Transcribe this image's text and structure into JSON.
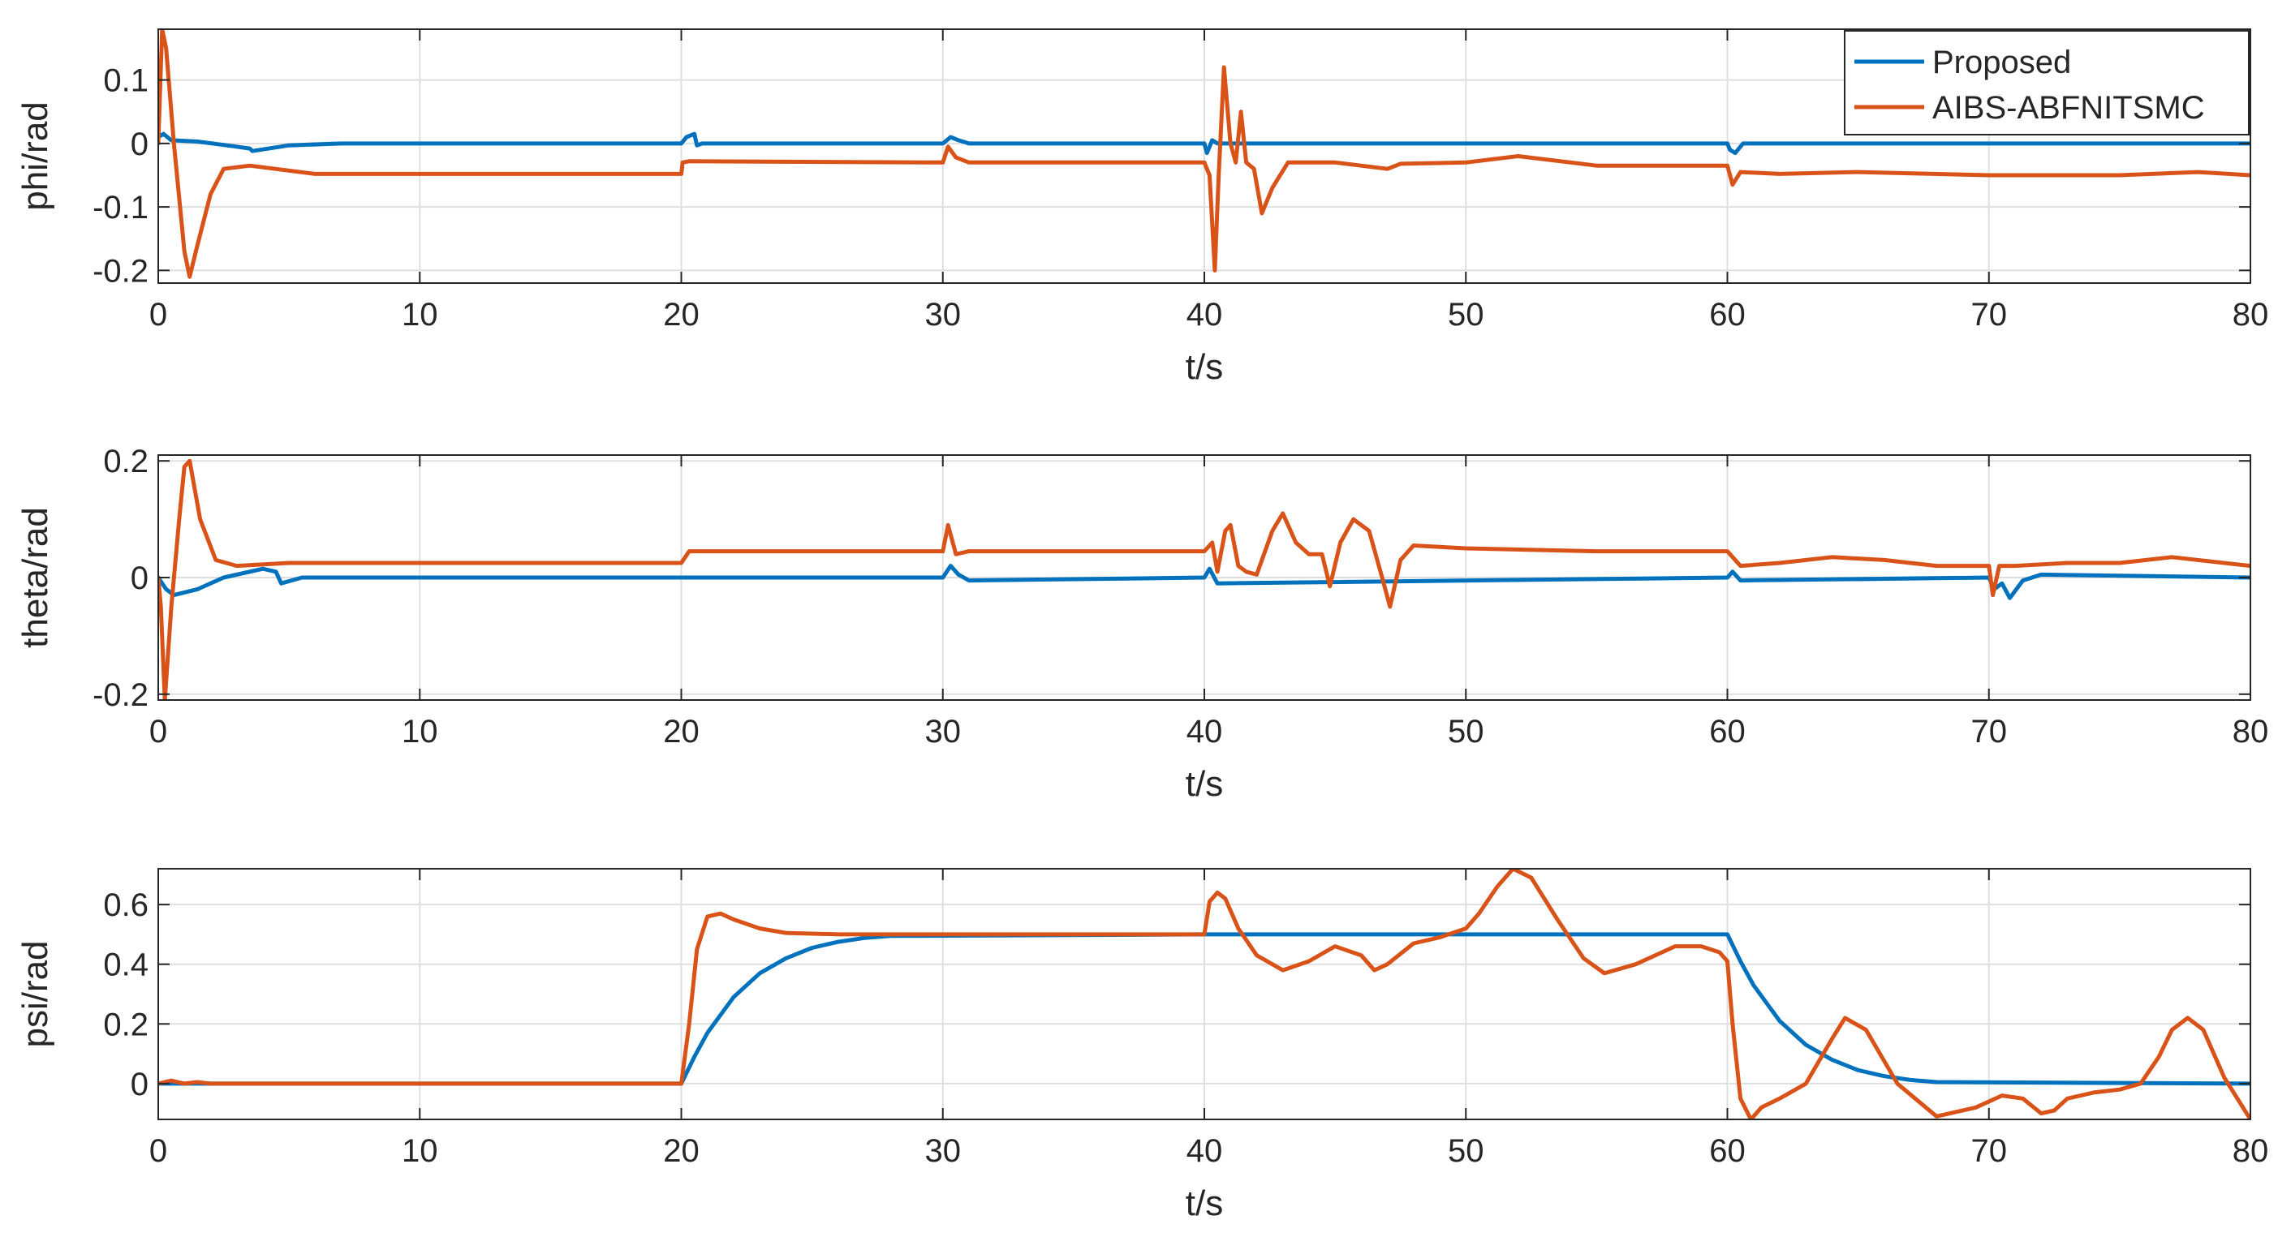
{
  "colors": {
    "proposed": "#0072BD",
    "aibs": "#D95319",
    "axes": "#262626",
    "grid": "#DFDFDF"
  },
  "legend": {
    "entries": [
      "Proposed",
      "AIBS-ABFNITSMC"
    ],
    "placement": "top-right"
  },
  "chart_data": [
    {
      "type": "line",
      "xlabel": "t/s",
      "ylabel": "phi/rad",
      "xlim": [
        0,
        80
      ],
      "ylim": [
        -0.22,
        0.18
      ],
      "xticks": [
        0,
        10,
        20,
        30,
        40,
        50,
        60,
        70,
        80
      ],
      "xtick_labels": [
        "0",
        "10",
        "20",
        "30",
        "40",
        "50",
        "60",
        "70",
        "80"
      ],
      "yticks": [
        -0.2,
        -0.1,
        0,
        0.1
      ],
      "ytick_labels": [
        "-0.2",
        "-0.1",
        "0",
        "0.1"
      ],
      "grid": true,
      "series": [
        {
          "name": "Proposed",
          "color_key": "proposed",
          "x": [
            0,
            0.2,
            0.5,
            1.5,
            3.0,
            3.5,
            3.6,
            5,
            7,
            20,
            20.2,
            20.5,
            20.6,
            20.8,
            30,
            30.3,
            30.6,
            31,
            40,
            40.1,
            40.3,
            40.5,
            60,
            60.1,
            60.3,
            60.6,
            80
          ],
          "y": [
            0.01,
            0.015,
            0.005,
            0.003,
            -0.005,
            -0.008,
            -0.012,
            -0.003,
            0,
            0,
            0.01,
            0.015,
            -0.003,
            0,
            0,
            0.01,
            0.005,
            0,
            0,
            -0.015,
            0.005,
            0,
            0,
            -0.01,
            -0.015,
            0,
            0
          ]
        },
        {
          "name": "AIBS-ABFNITSMC",
          "color_key": "aibs",
          "x": [
            0,
            0.15,
            0.3,
            0.6,
            1.0,
            1.2,
            1.5,
            2.0,
            2.5,
            3.5,
            6,
            20,
            20.05,
            20.3,
            30,
            30.2,
            30.5,
            31,
            40,
            40.2,
            40.4,
            40.55,
            40.75,
            41.0,
            41.2,
            41.4,
            41.6,
            41.9,
            42.2,
            42.6,
            43.2,
            45,
            47,
            47.5,
            50,
            52,
            55,
            60,
            60.2,
            60.5,
            62,
            65,
            70,
            75,
            78,
            80
          ],
          "y": [
            0.0,
            0.18,
            0.15,
            0.0,
            -0.17,
            -0.21,
            -0.16,
            -0.08,
            -0.04,
            -0.035,
            -0.048,
            -0.048,
            -0.03,
            -0.028,
            -0.03,
            -0.005,
            -0.022,
            -0.03,
            -0.03,
            -0.05,
            -0.2,
            -0.05,
            0.12,
            0.0,
            -0.03,
            0.05,
            -0.03,
            -0.04,
            -0.11,
            -0.07,
            -0.03,
            -0.03,
            -0.04,
            -0.032,
            -0.03,
            -0.02,
            -0.035,
            -0.035,
            -0.065,
            -0.045,
            -0.048,
            -0.045,
            -0.05,
            -0.05,
            -0.045,
            -0.05
          ]
        }
      ]
    },
    {
      "type": "line",
      "xlabel": "t/s",
      "ylabel": "theta/rad",
      "xlim": [
        0,
        80
      ],
      "ylim": [
        -0.21,
        0.21
      ],
      "xticks": [
        0,
        10,
        20,
        30,
        40,
        50,
        60,
        70,
        80
      ],
      "xtick_labels": [
        "0",
        "10",
        "20",
        "30",
        "40",
        "50",
        "60",
        "70",
        "80"
      ],
      "yticks": [
        -0.2,
        0,
        0.2
      ],
      "ytick_labels": [
        "-0.2",
        "0",
        "0.2"
      ],
      "grid": true,
      "series": [
        {
          "name": "Proposed",
          "color_key": "proposed",
          "x": [
            0,
            0.3,
            0.6,
            1.5,
            2.5,
            4.0,
            4.5,
            4.7,
            5.5,
            20,
            30,
            30.3,
            30.6,
            31,
            40,
            40.2,
            40.5,
            60,
            60.2,
            60.5,
            70,
            70.2,
            70.5,
            70.8,
            71.3,
            72,
            80
          ],
          "y": [
            0,
            -0.02,
            -0.03,
            -0.02,
            0.0,
            0.015,
            0.01,
            -0.01,
            0,
            0,
            0,
            0.02,
            0.005,
            -0.005,
            0,
            0.015,
            -0.01,
            0,
            0.01,
            -0.005,
            0,
            -0.02,
            -0.01,
            -0.035,
            -0.005,
            0.005,
            0
          ]
        },
        {
          "name": "AIBS-ABFNITSMC",
          "color_key": "aibs",
          "x": [
            0,
            0.1,
            0.25,
            0.5,
            0.8,
            1.0,
            1.2,
            1.6,
            2.2,
            3,
            5,
            20,
            20.3,
            30,
            30.2,
            30.5,
            31,
            40,
            40.3,
            40.5,
            40.8,
            41.0,
            41.3,
            41.6,
            42.0,
            42.6,
            43.0,
            43.5,
            44.0,
            44.5,
            44.8,
            45.2,
            45.7,
            46.3,
            46.8,
            47.1,
            47.5,
            48,
            50,
            55,
            60,
            60.5,
            62,
            64,
            66,
            68,
            70,
            70.15,
            70.4,
            71,
            73,
            75,
            77,
            80
          ],
          "y": [
            0,
            -0.05,
            -0.21,
            -0.05,
            0.1,
            0.19,
            0.2,
            0.1,
            0.03,
            0.02,
            0.025,
            0.025,
            0.045,
            0.045,
            0.09,
            0.04,
            0.045,
            0.045,
            0.06,
            0.01,
            0.08,
            0.09,
            0.02,
            0.01,
            0.005,
            0.08,
            0.11,
            0.06,
            0.04,
            0.04,
            -0.015,
            0.06,
            0.1,
            0.08,
            0.0,
            -0.05,
            0.03,
            0.055,
            0.05,
            0.045,
            0.045,
            0.02,
            0.025,
            0.035,
            0.03,
            0.02,
            0.02,
            -0.03,
            0.02,
            0.02,
            0.025,
            0.025,
            0.035,
            0.02
          ]
        }
      ]
    },
    {
      "type": "line",
      "xlabel": "t/s",
      "ylabel": "psi/rad",
      "xlim": [
        0,
        80
      ],
      "ylim": [
        -0.12,
        0.72
      ],
      "xticks": [
        0,
        10,
        20,
        30,
        40,
        50,
        60,
        70,
        80
      ],
      "xtick_labels": [
        "0",
        "10",
        "20",
        "30",
        "40",
        "50",
        "60",
        "70",
        "80"
      ],
      "yticks": [
        0,
        0.2,
        0.4,
        0.6
      ],
      "ytick_labels": [
        "0",
        "0.2",
        "0.4",
        "0.6"
      ],
      "grid": true,
      "series": [
        {
          "name": "Proposed",
          "color_key": "proposed",
          "x": [
            0,
            20,
            20.5,
            21,
            22,
            23,
            24,
            25,
            26,
            27,
            28,
            40,
            60,
            60.5,
            61,
            62,
            63,
            64,
            65,
            66,
            67,
            68,
            80
          ],
          "y": [
            0,
            0,
            0.09,
            0.17,
            0.29,
            0.37,
            0.42,
            0.455,
            0.475,
            0.488,
            0.495,
            0.5,
            0.5,
            0.41,
            0.33,
            0.21,
            0.13,
            0.08,
            0.045,
            0.025,
            0.012,
            0.005,
            0
          ]
        },
        {
          "name": "AIBS-ABFNITSMC",
          "color_key": "aibs",
          "x": [
            0,
            0.5,
            1,
            1.5,
            2,
            20,
            20.3,
            20.6,
            21.0,
            21.5,
            22,
            23,
            24,
            26,
            30,
            40,
            40.2,
            40.5,
            40.8,
            41.3,
            42,
            43,
            44,
            45,
            46,
            46.5,
            47,
            48,
            49,
            50,
            50.5,
            51.2,
            51.8,
            52.5,
            53.5,
            54.5,
            55.3,
            56.5,
            58,
            59,
            59.7,
            60,
            60.2,
            60.5,
            60.9,
            61.3,
            62,
            63,
            64,
            64.5,
            65.3,
            66.5,
            68,
            69.5,
            70.5,
            71.3,
            72,
            72.5,
            73,
            74,
            75,
            75.8,
            76.5,
            77.0,
            77.6,
            78.2,
            79,
            80
          ],
          "y": [
            0,
            0.01,
            0,
            0.005,
            0,
            0,
            0.2,
            0.45,
            0.56,
            0.57,
            0.55,
            0.52,
            0.505,
            0.5,
            0.5,
            0.5,
            0.61,
            0.64,
            0.62,
            0.52,
            0.43,
            0.38,
            0.41,
            0.46,
            0.43,
            0.38,
            0.4,
            0.47,
            0.49,
            0.52,
            0.57,
            0.66,
            0.72,
            0.69,
            0.55,
            0.42,
            0.37,
            0.4,
            0.46,
            0.46,
            0.44,
            0.41,
            0.2,
            -0.05,
            -0.12,
            -0.08,
            -0.05,
            0.0,
            0.15,
            0.22,
            0.18,
            0.0,
            -0.11,
            -0.08,
            -0.04,
            -0.05,
            -0.1,
            -0.09,
            -0.05,
            -0.03,
            -0.02,
            0.0,
            0.09,
            0.18,
            0.22,
            0.18,
            0.02,
            -0.12
          ]
        }
      ]
    }
  ]
}
